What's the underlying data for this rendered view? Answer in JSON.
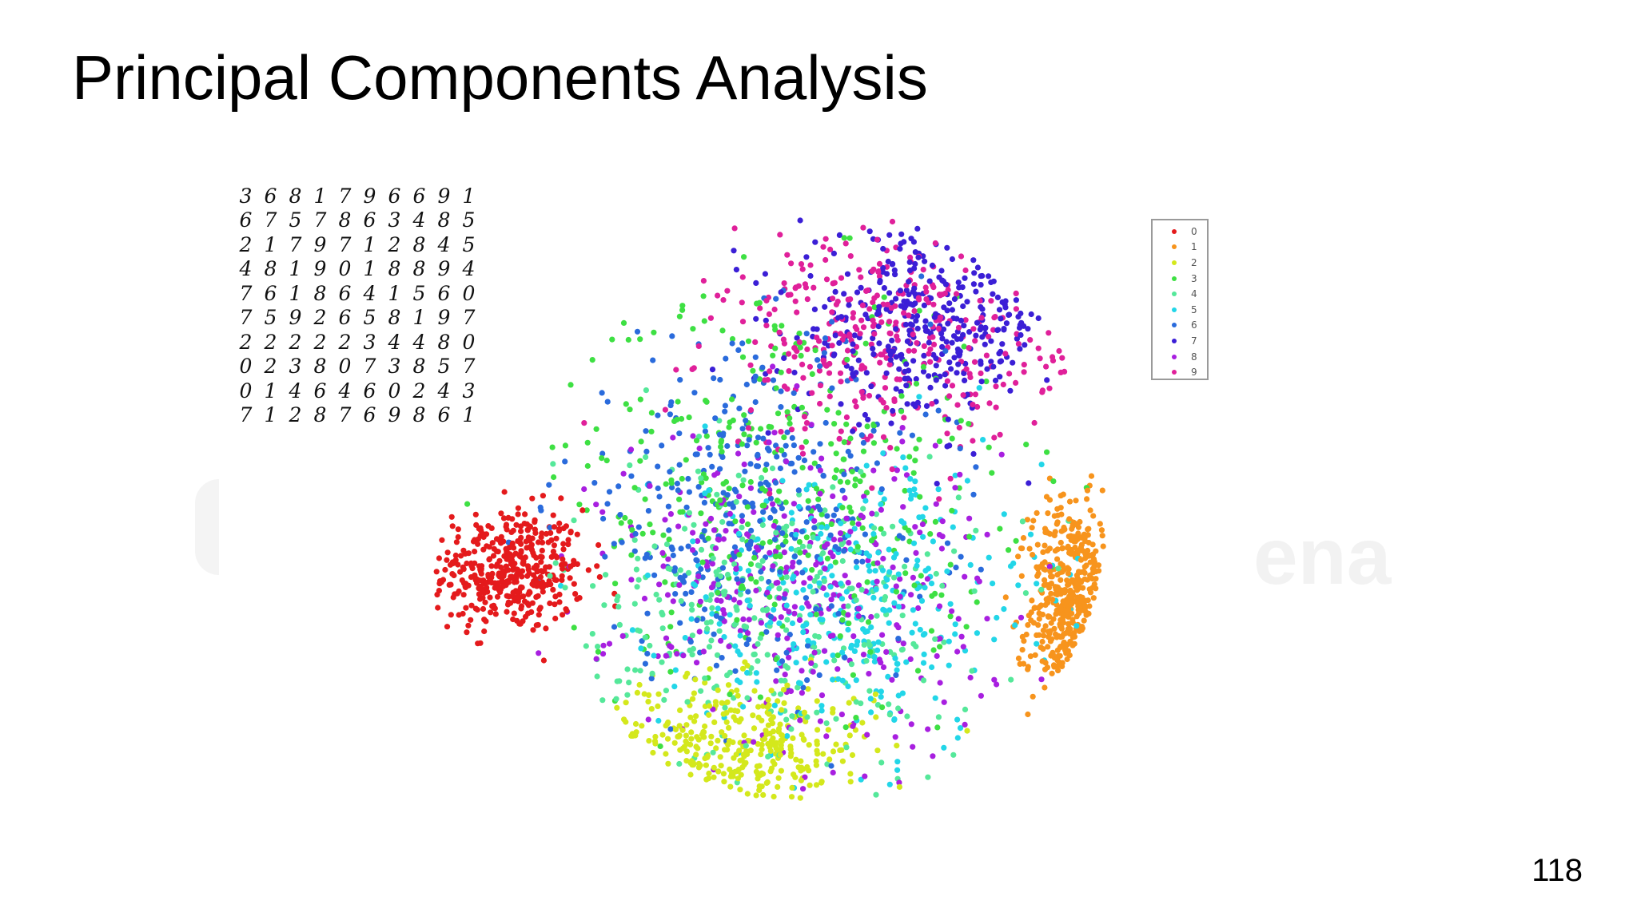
{
  "slide": {
    "title": "Principal Components Analysis",
    "page_number": "118",
    "watermark_text": "ena"
  },
  "digit_grid": [
    [
      "3",
      "6",
      "8",
      "1",
      "7",
      "9",
      "6",
      "6",
      "9",
      "1"
    ],
    [
      "6",
      "7",
      "5",
      "7",
      "8",
      "6",
      "3",
      "4",
      "8",
      "5"
    ],
    [
      "2",
      "1",
      "7",
      "9",
      "7",
      "1",
      "2",
      "8",
      "4",
      "5"
    ],
    [
      "4",
      "8",
      "1",
      "9",
      "0",
      "1",
      "8",
      "8",
      "9",
      "4"
    ],
    [
      "7",
      "6",
      "1",
      "8",
      "6",
      "4",
      "1",
      "5",
      "6",
      "0"
    ],
    [
      "7",
      "5",
      "9",
      "2",
      "6",
      "5",
      "8",
      "1",
      "9",
      "7"
    ],
    [
      "2",
      "2",
      "2",
      "2",
      "2",
      "3",
      "4",
      "4",
      "8",
      "0"
    ],
    [
      "0",
      "2",
      "3",
      "8",
      "0",
      "7",
      "3",
      "8",
      "5",
      "7"
    ],
    [
      "0",
      "1",
      "4",
      "6",
      "4",
      "6",
      "0",
      "2",
      "4",
      "3"
    ],
    [
      "7",
      "1",
      "2",
      "8",
      "7",
      "6",
      "9",
      "8",
      "6",
      "1"
    ]
  ],
  "chart_data": {
    "type": "scatter",
    "title": "",
    "xlabel": "",
    "ylabel": "",
    "axes_visible": false,
    "grid": false,
    "legend_placement": "top-right",
    "x_range": [
      -1.0,
      1.0
    ],
    "y_range": [
      -1.0,
      1.0
    ],
    "series": [
      {
        "name": "0",
        "color": "#e41a1c",
        "center": [
          -0.78,
          -0.15
        ],
        "spread": [
          0.18,
          0.17
        ],
        "approx_points": 420
      },
      {
        "name": "1",
        "color": "#f7941d",
        "center": [
          0.82,
          -0.28
        ],
        "spread": [
          0.1,
          0.3
        ],
        "approx_points": 420
      },
      {
        "name": "2",
        "color": "#d4e81c",
        "center": [
          -0.15,
          -0.72
        ],
        "spread": [
          0.35,
          0.18
        ],
        "approx_points": 330
      },
      {
        "name": "3",
        "color": "#3ee043",
        "center": [
          0.0,
          0.15
        ],
        "spread": [
          0.5,
          0.55
        ],
        "approx_points": 360
      },
      {
        "name": "4",
        "color": "#55e89a",
        "center": [
          -0.05,
          -0.3
        ],
        "spread": [
          0.5,
          0.45
        ],
        "approx_points": 330
      },
      {
        "name": "5",
        "color": "#22d6e8",
        "center": [
          0.2,
          -0.25
        ],
        "spread": [
          0.45,
          0.4
        ],
        "approx_points": 330
      },
      {
        "name": "6",
        "color": "#2a6bdc",
        "center": [
          -0.1,
          0.05
        ],
        "spread": [
          0.45,
          0.45
        ],
        "approx_points": 360
      },
      {
        "name": "7",
        "color": "#3b1fd6",
        "center": [
          0.4,
          0.65
        ],
        "spread": [
          0.3,
          0.25
        ],
        "approx_points": 360
      },
      {
        "name": "8",
        "color": "#a81fe0",
        "center": [
          0.05,
          -0.2
        ],
        "spread": [
          0.45,
          0.45
        ],
        "approx_points": 360
      },
      {
        "name": "9",
        "color": "#e0209a",
        "center": [
          0.3,
          0.6
        ],
        "spread": [
          0.4,
          0.3
        ],
        "approx_points": 360
      }
    ]
  }
}
